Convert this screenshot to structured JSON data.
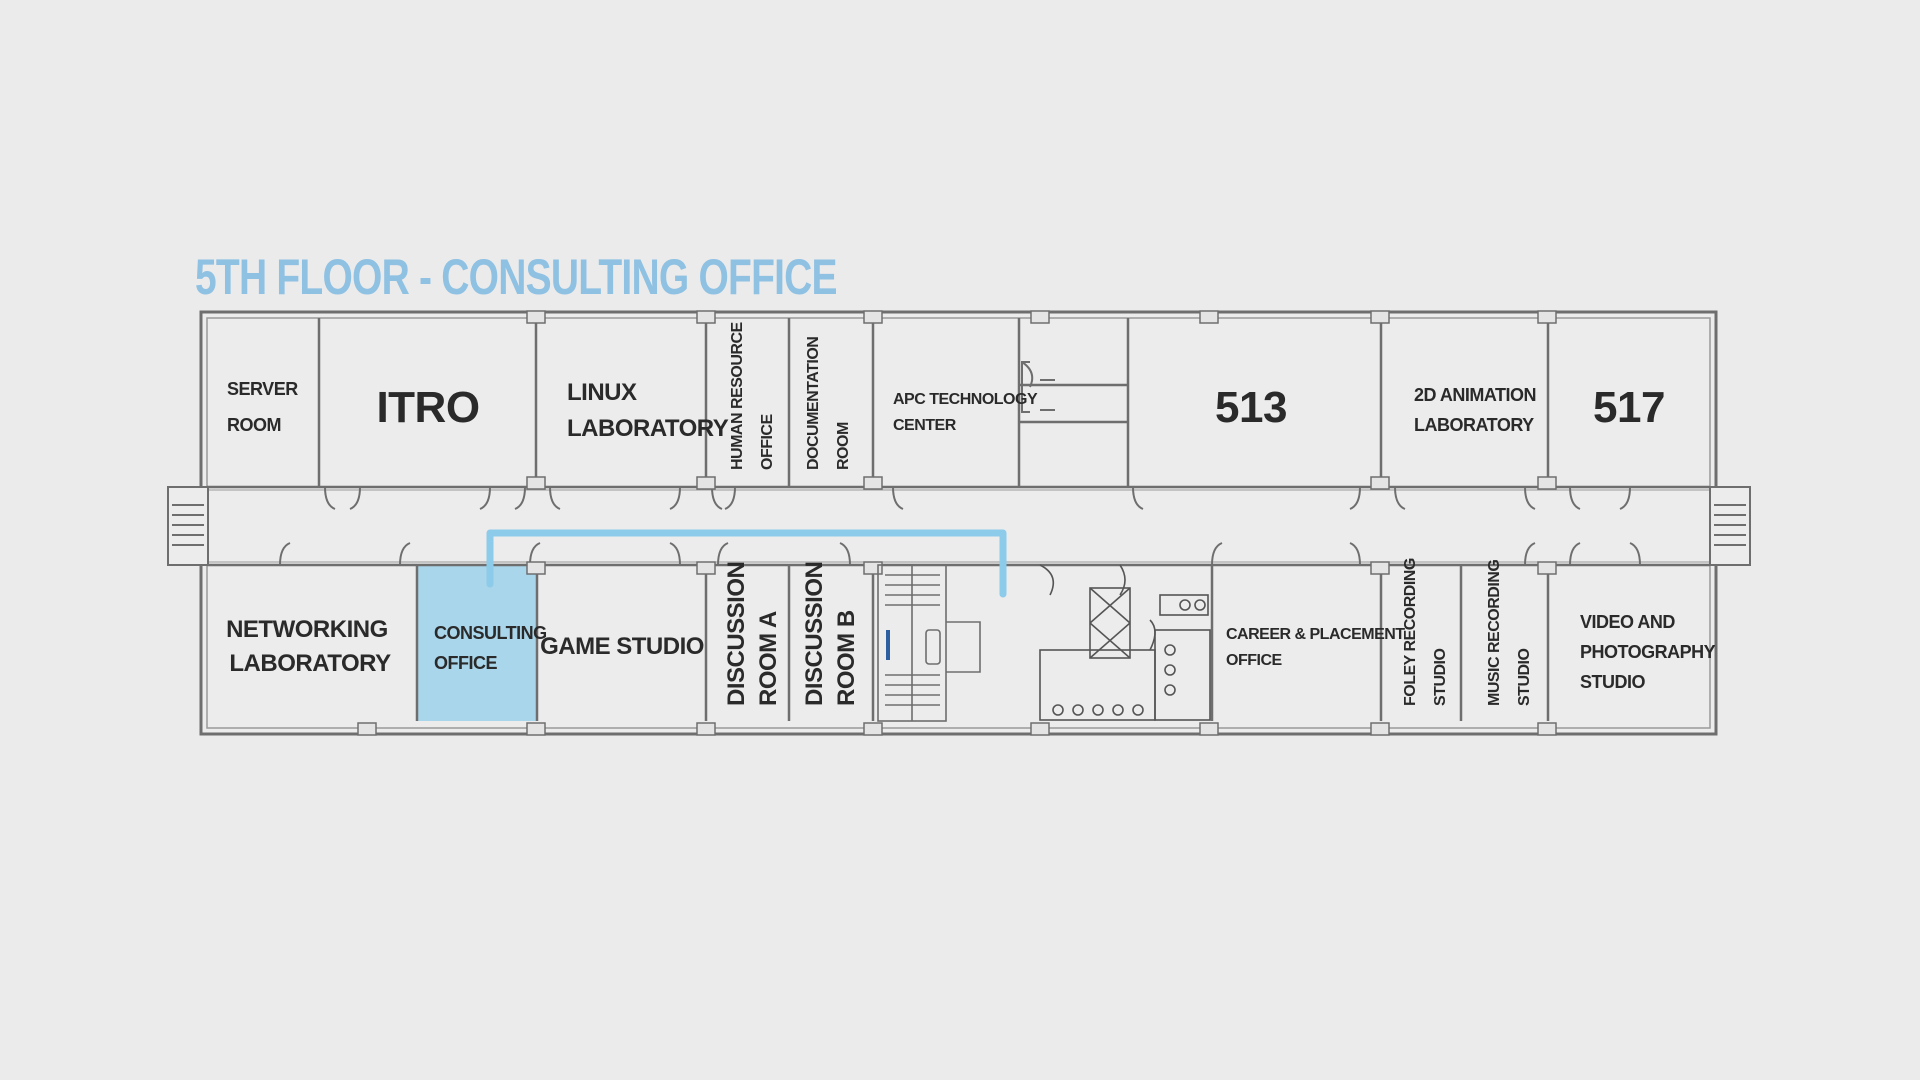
{
  "title": "5TH FLOOR - CONSULTING OFFICE",
  "colors": {
    "background": "#ebebeb",
    "title": "#8fc1e3",
    "highlight_room": "#a9d6ea",
    "route": "#8ccbea",
    "room_fill": "#ececec",
    "wall": "#6e6e6e",
    "text": "#2a2a2a"
  },
  "highlighted_room": "CONSULTING OFFICE",
  "rooms": {
    "server_room": [
      "SERVER",
      "ROOM"
    ],
    "itro": "ITRO",
    "linux_laboratory": [
      "LINUX",
      "LABORATORY"
    ],
    "human_resource_office": [
      "HUMAN RESOURCE",
      "OFFICE"
    ],
    "documentation_room": [
      "DOCUMENTATION",
      "ROOM"
    ],
    "apc_technology_center": [
      "APC TECHNOLOGY",
      "CENTER"
    ],
    "room_513": "513",
    "animation_lab": [
      "2D ANIMATION",
      "LABORATORY"
    ],
    "room_517": "517",
    "networking_laboratory": [
      "NETWORKING",
      "LABORATORY"
    ],
    "consulting_office": [
      "CONSULTING",
      "OFFICE"
    ],
    "game_studio": "GAME STUDIO",
    "discussion_room_a": [
      "DISCUSSION",
      "ROOM A"
    ],
    "discussion_room_b": [
      "DISCUSSION",
      "ROOM B"
    ],
    "career_placement_office": [
      "CAREER & PLACEMENT",
      "OFFICE"
    ],
    "foley_recording_studio": [
      "FOLEY RECORDING",
      "STUDIO"
    ],
    "music_recording_studio": [
      "MUSIC RECORDING",
      "STUDIO"
    ],
    "video_photography_studio": [
      "VIDEO AND",
      "PHOTOGRAPHY",
      "STUDIO"
    ]
  }
}
